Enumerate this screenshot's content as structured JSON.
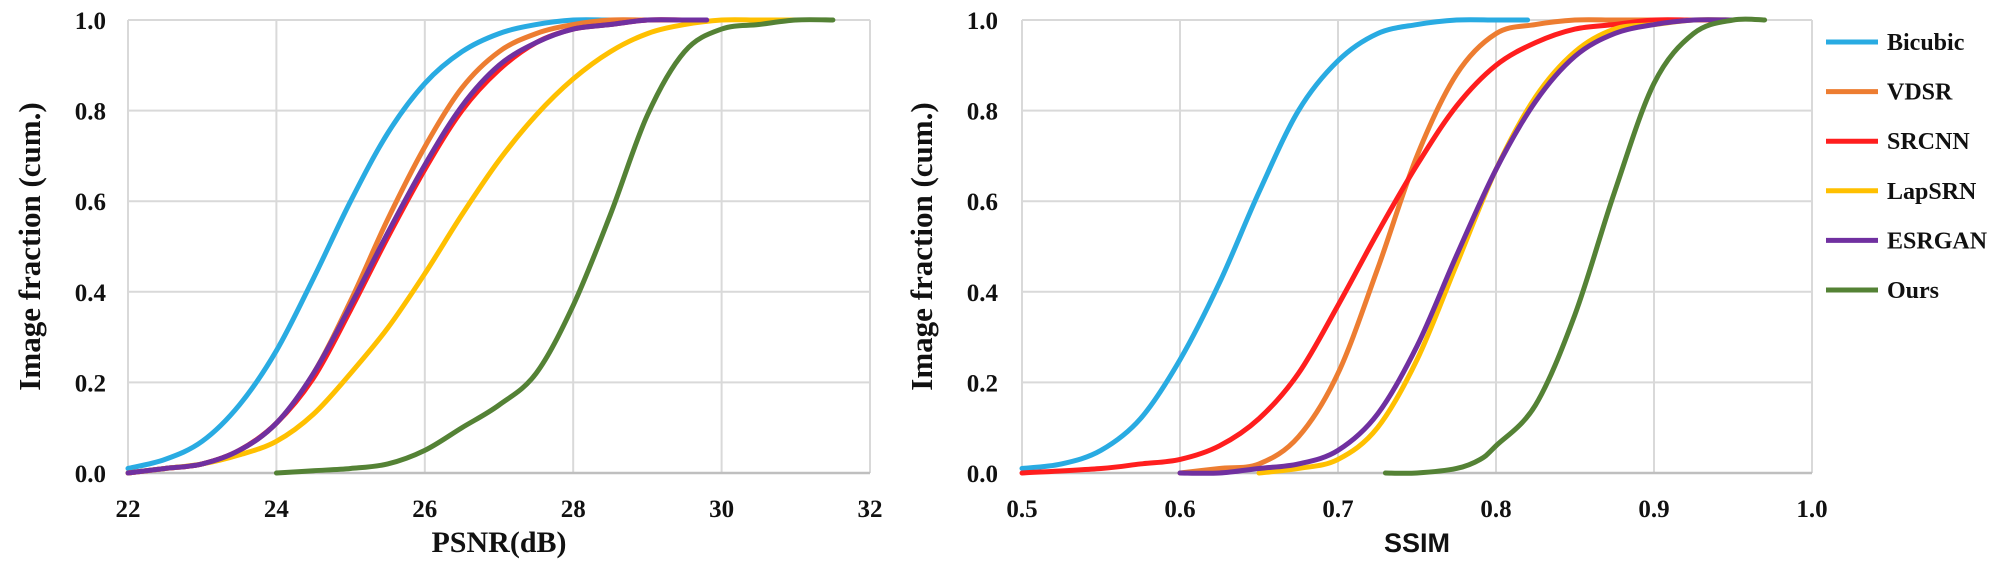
{
  "chart_data": [
    {
      "type": "line",
      "xlabel": "PSNR(dB)",
      "ylabel": "Image fraction (cum.)",
      "xlim": [
        22,
        32
      ],
      "ylim": [
        0.0,
        1.0
      ],
      "xticks": [
        "22",
        "24",
        "26",
        "28",
        "30",
        "32"
      ],
      "yticks": [
        "0.0",
        "0.2",
        "0.4",
        "0.6",
        "0.8",
        "1.0"
      ],
      "grid": true,
      "series": [
        {
          "name": "Bicubic",
          "color": "#29ABE2",
          "x": [
            22.0,
            22.5,
            23.0,
            23.5,
            24.0,
            24.5,
            25.0,
            25.5,
            26.0,
            26.5,
            27.0,
            27.5,
            28.0,
            28.5,
            29.0
          ],
          "y": [
            0.01,
            0.03,
            0.07,
            0.15,
            0.27,
            0.43,
            0.6,
            0.75,
            0.86,
            0.93,
            0.97,
            0.99,
            1.0,
            1.0,
            1.0
          ]
        },
        {
          "name": "VDSR",
          "color": "#ED7D31",
          "x": [
            22.0,
            22.5,
            23.0,
            23.5,
            24.0,
            24.5,
            25.0,
            25.5,
            26.0,
            26.5,
            27.0,
            27.5,
            28.0,
            28.5,
            29.0,
            29.5
          ],
          "y": [
            0.0,
            0.01,
            0.02,
            0.05,
            0.11,
            0.22,
            0.38,
            0.56,
            0.72,
            0.85,
            0.93,
            0.97,
            0.99,
            1.0,
            1.0,
            1.0
          ]
        },
        {
          "name": "SRCNN",
          "color": "#FF1E1E",
          "x": [
            22.0,
            22.5,
            23.0,
            23.5,
            24.0,
            24.5,
            25.0,
            25.5,
            26.0,
            26.5,
            27.0,
            27.5,
            28.0,
            28.5,
            29.0,
            29.5
          ],
          "y": [
            0.0,
            0.01,
            0.02,
            0.05,
            0.11,
            0.21,
            0.36,
            0.52,
            0.67,
            0.8,
            0.89,
            0.95,
            0.98,
            0.99,
            1.0,
            1.0
          ]
        },
        {
          "name": "LapSRN",
          "color": "#FFC000",
          "x": [
            22.0,
            22.5,
            23.0,
            23.5,
            24.0,
            24.5,
            25.0,
            25.5,
            26.0,
            26.5,
            27.0,
            27.5,
            28.0,
            28.5,
            29.0,
            29.5,
            30.0,
            30.5,
            31.0
          ],
          "y": [
            0.0,
            0.01,
            0.02,
            0.04,
            0.07,
            0.13,
            0.22,
            0.32,
            0.44,
            0.57,
            0.69,
            0.79,
            0.87,
            0.93,
            0.97,
            0.99,
            1.0,
            1.0,
            1.0
          ]
        },
        {
          "name": "ESRGAN",
          "color": "#7030A0",
          "x": [
            22.0,
            22.5,
            23.0,
            23.5,
            24.0,
            24.5,
            25.0,
            25.5,
            26.0,
            26.5,
            27.0,
            27.5,
            28.0,
            28.5,
            29.0,
            29.5,
            29.8
          ],
          "y": [
            0.0,
            0.01,
            0.02,
            0.05,
            0.11,
            0.22,
            0.37,
            0.53,
            0.68,
            0.81,
            0.9,
            0.95,
            0.98,
            0.99,
            1.0,
            1.0,
            1.0
          ]
        },
        {
          "name": "Ours",
          "color": "#548235",
          "x": [
            24.0,
            24.5,
            25.0,
            25.5,
            26.0,
            26.5,
            27.0,
            27.5,
            28.0,
            28.5,
            29.0,
            29.5,
            30.0,
            30.5,
            31.0,
            31.5
          ],
          "y": [
            0.0,
            0.005,
            0.01,
            0.02,
            0.05,
            0.1,
            0.15,
            0.22,
            0.37,
            0.57,
            0.79,
            0.93,
            0.98,
            0.99,
            1.0,
            1.0
          ]
        }
      ]
    },
    {
      "type": "line",
      "xlabel": "SSIM",
      "ylabel": "Image fraction (cum.)",
      "xlim": [
        0.5,
        1.0
      ],
      "ylim": [
        0.0,
        1.0
      ],
      "xticks": [
        "0.5",
        "0.6",
        "0.7",
        "0.8",
        "0.9",
        "1.0"
      ],
      "yticks": [
        "0.0",
        "0.2",
        "0.4",
        "0.6",
        "0.8",
        "1.0"
      ],
      "grid": true,
      "series": [
        {
          "name": "Bicubic",
          "color": "#29ABE2",
          "x": [
            0.5,
            0.525,
            0.55,
            0.575,
            0.6,
            0.625,
            0.65,
            0.675,
            0.7,
            0.725,
            0.75,
            0.775,
            0.8,
            0.82
          ],
          "y": [
            0.01,
            0.02,
            0.05,
            0.12,
            0.25,
            0.42,
            0.62,
            0.8,
            0.91,
            0.97,
            0.99,
            1.0,
            1.0,
            1.0
          ]
        },
        {
          "name": "VDSR",
          "color": "#ED7D31",
          "x": [
            0.6,
            0.625,
            0.65,
            0.675,
            0.7,
            0.725,
            0.75,
            0.775,
            0.8,
            0.825,
            0.85,
            0.875,
            0.9
          ],
          "y": [
            0.0,
            0.01,
            0.02,
            0.08,
            0.22,
            0.45,
            0.7,
            0.88,
            0.97,
            0.99,
            1.0,
            1.0,
            1.0
          ]
        },
        {
          "name": "SRCNN",
          "color": "#FF1E1E",
          "x": [
            0.5,
            0.55,
            0.575,
            0.6,
            0.625,
            0.65,
            0.675,
            0.7,
            0.725,
            0.75,
            0.775,
            0.8,
            0.825,
            0.85,
            0.875,
            0.9,
            0.925,
            0.95
          ],
          "y": [
            0.0,
            0.01,
            0.02,
            0.03,
            0.06,
            0.12,
            0.22,
            0.37,
            0.53,
            0.68,
            0.81,
            0.9,
            0.95,
            0.98,
            0.99,
            1.0,
            1.0,
            1.0
          ]
        },
        {
          "name": "LapSRN",
          "color": "#FFC000",
          "x": [
            0.65,
            0.675,
            0.7,
            0.725,
            0.75,
            0.775,
            0.8,
            0.825,
            0.85,
            0.875,
            0.9,
            0.925,
            0.95
          ],
          "y": [
            0.0,
            0.01,
            0.03,
            0.1,
            0.25,
            0.46,
            0.67,
            0.83,
            0.93,
            0.98,
            0.99,
            1.0,
            1.0
          ]
        },
        {
          "name": "ESRGAN",
          "color": "#7030A0",
          "x": [
            0.6,
            0.625,
            0.65,
            0.675,
            0.7,
            0.725,
            0.75,
            0.775,
            0.8,
            0.825,
            0.85,
            0.875,
            0.9,
            0.925,
            0.95
          ],
          "y": [
            0.0,
            0.0,
            0.01,
            0.02,
            0.05,
            0.13,
            0.28,
            0.48,
            0.67,
            0.82,
            0.92,
            0.97,
            0.99,
            1.0,
            1.0
          ]
        },
        {
          "name": "Ours",
          "color": "#548235",
          "x": [
            0.73,
            0.75,
            0.775,
            0.79,
            0.8,
            0.825,
            0.85,
            0.875,
            0.9,
            0.925,
            0.95,
            0.97
          ],
          "y": [
            0.0,
            0.0,
            0.01,
            0.03,
            0.06,
            0.15,
            0.35,
            0.62,
            0.86,
            0.97,
            1.0,
            1.0
          ]
        }
      ]
    }
  ],
  "legend": {
    "position": "right",
    "items": [
      {
        "name": "Bicubic",
        "color": "#29ABE2"
      },
      {
        "name": "VDSR",
        "color": "#ED7D31"
      },
      {
        "name": "SRCNN",
        "color": "#FF1E1E"
      },
      {
        "name": "LapSRN",
        "color": "#FFC000"
      },
      {
        "name": "ESRGAN",
        "color": "#7030A0"
      },
      {
        "name": "Ours",
        "color": "#548235"
      }
    ]
  },
  "style": {
    "grid_color": "#D9D9D9",
    "axis_color": "#BFBFBF"
  }
}
